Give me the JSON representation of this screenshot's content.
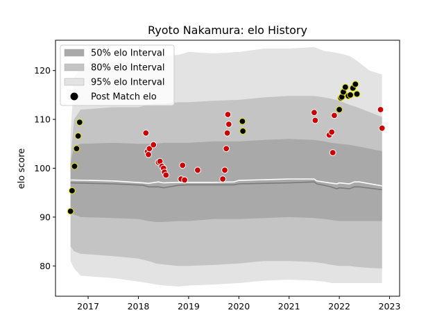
{
  "chart_data": {
    "type": "scatter",
    "title": "Ryoto Nakamura: elo History",
    "xlabel": "",
    "ylabel": "elo score",
    "xlim": [
      2016.35,
      2023.2
    ],
    "ylim": [
      73.8,
      126.2
    ],
    "x_ticks": [
      2017,
      2018,
      2019,
      2020,
      2021,
      2022,
      2023
    ],
    "x_tick_labels": [
      "2017",
      "2018",
      "2019",
      "2020",
      "2021",
      "2022",
      "2023"
    ],
    "y_ticks": [
      80,
      90,
      100,
      110,
      120
    ],
    "y_tick_labels": [
      "80",
      "90",
      "100",
      "110",
      "120"
    ],
    "grid": false,
    "legend_position": "top-left",
    "legend": {
      "band50": "50% elo Interval",
      "band80": "80% elo Interval",
      "band95": "95% elo Interval",
      "points": "Post Match elo"
    },
    "colors": {
      "band50": "#a9a9a9",
      "band80": "#c4c4c4",
      "band95": "#e3e3e3",
      "median_line": "#7a7a7a",
      "mean_line": "#ffffff",
      "win_point": "#000000",
      "win_edge": "#e6e600",
      "loss_point": "#cc0000",
      "loss_edge": "#ffffff"
    },
    "bands": {
      "x": [
        2016.65,
        2016.72,
        2016.85,
        2017.5,
        2018.0,
        2018.2,
        2018.35,
        2018.5,
        2018.8,
        2019.0,
        2019.5,
        2020.0,
        2020.5,
        2021.0,
        2021.5,
        2021.7,
        2021.85,
        2022.0,
        2022.2,
        2022.35,
        2022.6,
        2022.85
      ],
      "p95_hi": [
        107,
        118.5,
        120.5,
        121.5,
        121.5,
        122.5,
        123.0,
        123.0,
        123.2,
        123.8,
        123.5,
        123.8,
        124.5,
        124.5,
        124.8,
        124.0,
        123.8,
        123.5,
        123.0,
        122.0,
        120.0,
        119.2
      ],
      "p80_hi": [
        102,
        110.0,
        112.0,
        112.5,
        112.5,
        113.0,
        113.2,
        113.2,
        113.5,
        113.5,
        113.8,
        114.0,
        114.5,
        114.8,
        114.8,
        114.5,
        114.2,
        113.8,
        113.0,
        112.5,
        111.5,
        110.5
      ],
      "p50_hi": [
        101,
        104.5,
        105.0,
        105.2,
        105.0,
        105.0,
        105.0,
        105.2,
        105.2,
        105.2,
        105.5,
        105.5,
        105.8,
        106.0,
        105.8,
        105.5,
        105.2,
        105.0,
        104.8,
        104.5,
        104.0,
        103.5
      ],
      "p50_lo": [
        91,
        90.5,
        90.0,
        89.8,
        89.6,
        89.2,
        89.0,
        89.0,
        89.2,
        89.2,
        89.6,
        89.6,
        89.8,
        90.0,
        89.8,
        89.6,
        89.4,
        89.2,
        89.2,
        89.2,
        89.2,
        89.2
      ],
      "p80_lo": [
        84,
        83.0,
        82.5,
        82.0,
        81.5,
        81.0,
        80.5,
        80.3,
        80.0,
        80.0,
        80.2,
        80.5,
        81.0,
        81.0,
        80.8,
        80.5,
        80.2,
        80.0,
        80.0,
        79.8,
        79.6,
        79.5
      ],
      "p95_lo": [
        81,
        79.5,
        78.0,
        77.5,
        76.8,
        76.5,
        76.2,
        76.0,
        75.8,
        76.0,
        76.2,
        76.5,
        77.0,
        77.2,
        77.0,
        76.8,
        76.5,
        76.5,
        76.5,
        76.5,
        76.5,
        76.5
      ]
    },
    "median_line": {
      "x": [
        2016.65,
        2017.5,
        2018.1,
        2018.2,
        2018.4,
        2018.5,
        2018.8,
        2019.0,
        2019.5,
        2019.9,
        2020.0,
        2021.0,
        2021.5,
        2021.55,
        2021.8,
        2021.95,
        2022.0,
        2022.2,
        2022.3,
        2022.4,
        2022.85
      ],
      "y": [
        97.0,
        96.8,
        96.5,
        96.2,
        96.2,
        96.0,
        96.5,
        96.6,
        96.6,
        96.6,
        96.8,
        97.0,
        97.2,
        96.8,
        96.3,
        95.8,
        96.0,
        95.8,
        96.2,
        96.2,
        95.6
      ]
    },
    "mean_line": {
      "x": [
        2016.65,
        2017.5,
        2018.1,
        2018.2,
        2018.4,
        2018.5,
        2018.8,
        2019.0,
        2019.5,
        2019.9,
        2020.0,
        2021.0,
        2021.5,
        2021.55,
        2021.8,
        2021.95,
        2022.0,
        2022.2,
        2022.3,
        2022.4,
        2022.85
      ],
      "y": [
        97.6,
        97.4,
        97.0,
        96.9,
        97.2,
        97.0,
        97.1,
        97.1,
        97.1,
        97.2,
        97.5,
        97.8,
        97.8,
        97.4,
        97.0,
        96.8,
        97.0,
        96.8,
        97.2,
        97.2,
        96.4
      ]
    },
    "series": [
      {
        "name": "Post Match elo",
        "outcome": "win",
        "x": [
          2016.65,
          2016.68,
          2016.73,
          2016.77,
          2016.8,
          2016.83,
          2020.07,
          2020.08,
          2022.0,
          2022.03,
          2022.05,
          2022.08,
          2022.12,
          2022.18,
          2022.22,
          2022.27,
          2022.32,
          2022.35
        ],
        "y": [
          91.2,
          95.4,
          100.4,
          104.0,
          106.6,
          109.4,
          109.6,
          107.6,
          112.0,
          114.4,
          114.6,
          115.6,
          116.6,
          114.8,
          115.0,
          116.4,
          117.2,
          115.2
        ]
      },
      {
        "name": "",
        "outcome": "loss",
        "x": [
          2018.15,
          2018.18,
          2018.2,
          2018.22,
          2018.3,
          2018.4,
          2018.43,
          2018.47,
          2018.5,
          2018.52,
          2018.55,
          2018.85,
          2018.88,
          2018.92,
          2019.18,
          2019.68,
          2019.72,
          2019.75,
          2019.77,
          2019.78,
          2019.8,
          2021.5,
          2021.52,
          2021.8,
          2021.85,
          2021.87,
          2021.9,
          2022.82,
          2022.85
        ],
        "y": [
          107.2,
          103.4,
          102.8,
          104.0,
          104.8,
          101.2,
          101.4,
          100.4,
          100.0,
          99.2,
          98.6,
          97.8,
          100.6,
          97.6,
          99.6,
          97.8,
          99.6,
          104.0,
          107.2,
          111.0,
          109.0,
          111.4,
          109.8,
          106.8,
          107.4,
          103.2,
          110.8,
          112.0,
          108.2
        ]
      }
    ]
  }
}
